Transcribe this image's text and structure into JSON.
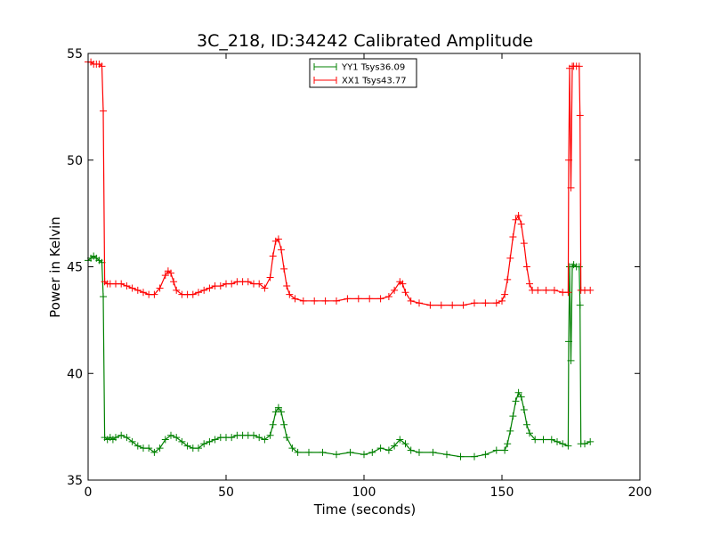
{
  "chart_data": {
    "type": "line",
    "title": "3C_218, ID:34242 Calibrated Amplitude",
    "xlabel": "Time (seconds)",
    "ylabel": "Power in Kelvin",
    "xlim": [
      0,
      200
    ],
    "ylim": [
      35,
      55
    ],
    "xticks": [
      0,
      50,
      100,
      150,
      200
    ],
    "yticks": [
      35,
      40,
      45,
      50,
      55
    ],
    "xtick_labels": [
      "0",
      "50",
      "100",
      "150",
      "200"
    ],
    "ytick_labels": [
      "35",
      "40",
      "45",
      "50",
      "55"
    ],
    "grid": false,
    "legend_position": "top-center",
    "marker": "+",
    "series": [
      {
        "name": "YY1 Tsys36.09",
        "color": "#008000",
        "points": [
          [
            0,
            45.3
          ],
          [
            1,
            45.4
          ],
          [
            2,
            45.5
          ],
          [
            3,
            45.4
          ],
          [
            4,
            45.3
          ],
          [
            5,
            45.2
          ],
          [
            5.5,
            43.6
          ],
          [
            6,
            37.0
          ],
          [
            7,
            36.9
          ],
          [
            8,
            37.0
          ],
          [
            9,
            36.9
          ],
          [
            10,
            37.0
          ],
          [
            12,
            37.1
          ],
          [
            14,
            37.0
          ],
          [
            16,
            36.8
          ],
          [
            18,
            36.6
          ],
          [
            20,
            36.5
          ],
          [
            22,
            36.5
          ],
          [
            24,
            36.3
          ],
          [
            26,
            36.5
          ],
          [
            28,
            36.9
          ],
          [
            30,
            37.1
          ],
          [
            32,
            37.0
          ],
          [
            34,
            36.8
          ],
          [
            36,
            36.6
          ],
          [
            38,
            36.5
          ],
          [
            40,
            36.5
          ],
          [
            42,
            36.7
          ],
          [
            44,
            36.8
          ],
          [
            46,
            36.9
          ],
          [
            48,
            37.0
          ],
          [
            50,
            37.0
          ],
          [
            52,
            37.0
          ],
          [
            54,
            37.1
          ],
          [
            56,
            37.1
          ],
          [
            58,
            37.1
          ],
          [
            60,
            37.1
          ],
          [
            62,
            37.0
          ],
          [
            64,
            36.9
          ],
          [
            66,
            37.1
          ],
          [
            67,
            37.6
          ],
          [
            68,
            38.2
          ],
          [
            69,
            38.4
          ],
          [
            70,
            38.2
          ],
          [
            71,
            37.6
          ],
          [
            72,
            37.0
          ],
          [
            74,
            36.5
          ],
          [
            76,
            36.3
          ],
          [
            80,
            36.3
          ],
          [
            85,
            36.3
          ],
          [
            90,
            36.2
          ],
          [
            95,
            36.3
          ],
          [
            100,
            36.2
          ],
          [
            103,
            36.3
          ],
          [
            106,
            36.5
          ],
          [
            109,
            36.4
          ],
          [
            111,
            36.6
          ],
          [
            113,
            36.9
          ],
          [
            115,
            36.7
          ],
          [
            117,
            36.4
          ],
          [
            120,
            36.3
          ],
          [
            125,
            36.3
          ],
          [
            130,
            36.2
          ],
          [
            135,
            36.1
          ],
          [
            140,
            36.1
          ],
          [
            144,
            36.2
          ],
          [
            148,
            36.4
          ],
          [
            151,
            36.4
          ],
          [
            152,
            36.7
          ],
          [
            153,
            37.3
          ],
          [
            154,
            38.0
          ],
          [
            155,
            38.7
          ],
          [
            156,
            39.1
          ],
          [
            157,
            38.9
          ],
          [
            158,
            38.3
          ],
          [
            159,
            37.6
          ],
          [
            160,
            37.2
          ],
          [
            162,
            36.9
          ],
          [
            165,
            36.9
          ],
          [
            168,
            36.9
          ],
          [
            170,
            36.8
          ],
          [
            172,
            36.7
          ],
          [
            174,
            36.6
          ],
          [
            174.2,
            41.5
          ],
          [
            174.5,
            45.0
          ],
          [
            175,
            40.6
          ],
          [
            175.5,
            45.0
          ],
          [
            176,
            45.1
          ],
          [
            177,
            45.0
          ],
          [
            178,
            45.0
          ],
          [
            178.3,
            43.2
          ],
          [
            178.6,
            36.7
          ],
          [
            180,
            36.7
          ],
          [
            182,
            36.8
          ]
        ]
      },
      {
        "name": "XX1 Tsys43.77",
        "color": "#ff0000",
        "points": [
          [
            0,
            54.6
          ],
          [
            1,
            54.6
          ],
          [
            2,
            54.5
          ],
          [
            3,
            54.5
          ],
          [
            4,
            54.5
          ],
          [
            5,
            54.4
          ],
          [
            5.5,
            52.3
          ],
          [
            6,
            44.3
          ],
          [
            7,
            44.2
          ],
          [
            8,
            44.2
          ],
          [
            10,
            44.2
          ],
          [
            12,
            44.2
          ],
          [
            14,
            44.1
          ],
          [
            16,
            44.0
          ],
          [
            18,
            43.9
          ],
          [
            20,
            43.8
          ],
          [
            22,
            43.7
          ],
          [
            24,
            43.7
          ],
          [
            26,
            44.0
          ],
          [
            28,
            44.6
          ],
          [
            29,
            44.8
          ],
          [
            30,
            44.7
          ],
          [
            31,
            44.3
          ],
          [
            32,
            43.9
          ],
          [
            34,
            43.7
          ],
          [
            36,
            43.7
          ],
          [
            38,
            43.7
          ],
          [
            40,
            43.8
          ],
          [
            42,
            43.9
          ],
          [
            44,
            44.0
          ],
          [
            46,
            44.1
          ],
          [
            48,
            44.1
          ],
          [
            50,
            44.2
          ],
          [
            52,
            44.2
          ],
          [
            54,
            44.3
          ],
          [
            56,
            44.3
          ],
          [
            58,
            44.3
          ],
          [
            60,
            44.2
          ],
          [
            62,
            44.2
          ],
          [
            64,
            44.0
          ],
          [
            66,
            44.5
          ],
          [
            67,
            45.5
          ],
          [
            68,
            46.2
          ],
          [
            69,
            46.3
          ],
          [
            70,
            45.8
          ],
          [
            71,
            44.9
          ],
          [
            72,
            44.1
          ],
          [
            73,
            43.7
          ],
          [
            75,
            43.5
          ],
          [
            78,
            43.4
          ],
          [
            82,
            43.4
          ],
          [
            86,
            43.4
          ],
          [
            90,
            43.4
          ],
          [
            94,
            43.5
          ],
          [
            98,
            43.5
          ],
          [
            102,
            43.5
          ],
          [
            106,
            43.5
          ],
          [
            109,
            43.6
          ],
          [
            111,
            43.9
          ],
          [
            113,
            44.3
          ],
          [
            114,
            44.2
          ],
          [
            115,
            43.8
          ],
          [
            117,
            43.4
          ],
          [
            120,
            43.3
          ],
          [
            124,
            43.2
          ],
          [
            128,
            43.2
          ],
          [
            132,
            43.2
          ],
          [
            136,
            43.2
          ],
          [
            140,
            43.3
          ],
          [
            144,
            43.3
          ],
          [
            148,
            43.3
          ],
          [
            150,
            43.4
          ],
          [
            151,
            43.7
          ],
          [
            152,
            44.4
          ],
          [
            153,
            45.4
          ],
          [
            154,
            46.4
          ],
          [
            155,
            47.2
          ],
          [
            156,
            47.4
          ],
          [
            157,
            47.0
          ],
          [
            158,
            46.1
          ],
          [
            159,
            45.0
          ],
          [
            160,
            44.2
          ],
          [
            161,
            43.9
          ],
          [
            163,
            43.9
          ],
          [
            166,
            43.9
          ],
          [
            169,
            43.9
          ],
          [
            172,
            43.8
          ],
          [
            174,
            43.8
          ],
          [
            174.2,
            50.0
          ],
          [
            174.5,
            54.3
          ],
          [
            175,
            48.7
          ],
          [
            175.5,
            54.4
          ],
          [
            176,
            54.4
          ],
          [
            177,
            54.4
          ],
          [
            178,
            54.4
          ],
          [
            178.3,
            52.1
          ],
          [
            178.6,
            43.9
          ],
          [
            180,
            43.9
          ],
          [
            182,
            43.9
          ]
        ]
      }
    ]
  }
}
